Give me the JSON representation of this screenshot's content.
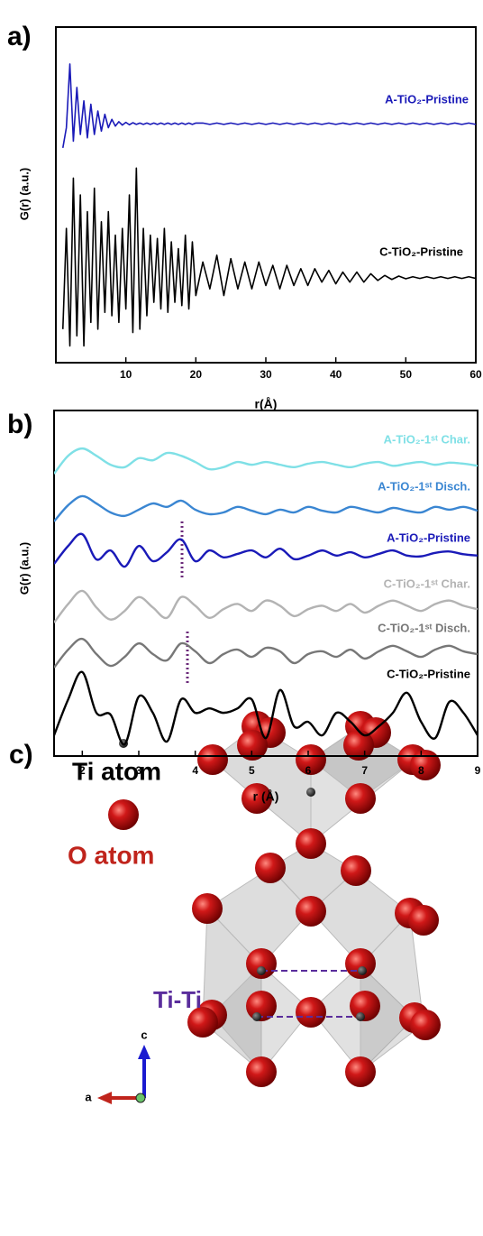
{
  "chart_data": [
    {
      "type": "line",
      "panel_label": "a)",
      "xlabel": "r(Å)",
      "ylabel": "G(r) (a.u.)",
      "xlim": [
        0,
        60
      ],
      "xticks": [
        10,
        20,
        30,
        40,
        50,
        60
      ],
      "ylim": [
        0,
        100
      ],
      "x": [
        1,
        1.5,
        2,
        2.5,
        3,
        3.5,
        4,
        4.5,
        5,
        5.5,
        6,
        6.5,
        7,
        7.5,
        8,
        8.5,
        9,
        9.5,
        10,
        10.5,
        11,
        11.5,
        12,
        12.5,
        13,
        13.5,
        14,
        14.5,
        15,
        15.5,
        16,
        16.5,
        17,
        17.5,
        18,
        18.5,
        19,
        19.5,
        20,
        21,
        22,
        23,
        24,
        25,
        26,
        27,
        28,
        29,
        30,
        31,
        32,
        33,
        34,
        35,
        36,
        37,
        38,
        39,
        40,
        41,
        42,
        43,
        44,
        45,
        46,
        47,
        48,
        49,
        50,
        51,
        52,
        53,
        54,
        55,
        56,
        57,
        58,
        59,
        60
      ],
      "series": [
        {
          "name": "A-TiO₂-Pristine",
          "color": "#1a1ab8",
          "values": [
            64,
            70,
            89,
            66,
            82,
            68,
            78,
            67,
            77,
            68,
            75,
            69,
            74,
            70,
            72.5,
            70.5,
            71.8,
            70.8,
            71.6,
            70.9,
            71.5,
            71,
            71.4,
            71,
            71.4,
            71,
            71.4,
            71,
            71.4,
            71,
            71.4,
            71,
            71.4,
            71,
            71.4,
            71,
            71.4,
            71,
            71.4,
            71.4,
            71,
            71.4,
            71,
            71.4,
            71,
            71.4,
            71,
            71.4,
            71,
            71.4,
            71,
            71.4,
            71,
            71.4,
            71,
            71.4,
            71,
            71.4,
            71,
            71.4,
            71,
            71.4,
            71,
            71.4,
            71,
            71.4,
            71,
            71.4,
            71,
            71.4,
            71,
            71.4,
            71,
            71.4,
            71,
            71.4,
            71,
            71.4,
            71
          ]
        },
        {
          "name": "C-TiO₂-Pristine",
          "color": "#000000",
          "values": [
            10,
            40,
            5,
            55,
            8,
            50,
            5,
            45,
            12,
            52,
            10,
            42,
            15,
            45,
            14,
            38,
            12,
            40,
            16,
            50,
            9,
            58,
            10,
            40,
            14,
            38,
            18,
            37,
            16,
            40,
            15,
            36,
            18,
            34,
            17,
            38,
            16,
            36,
            20,
            30,
            22,
            32,
            20,
            31,
            22,
            30,
            22,
            30,
            23,
            29,
            22,
            29,
            23,
            28,
            23,
            28,
            24,
            27.5,
            23.5,
            27,
            24,
            27,
            24,
            26.5,
            24.5,
            26,
            24.8,
            25.8,
            25,
            25.6,
            25.1,
            25.6,
            25.1,
            25.6,
            25.1,
            25.6,
            25.1,
            25.6,
            25.1
          ]
        }
      ]
    },
    {
      "type": "line",
      "panel_label": "b)",
      "xlabel": "r (Å)",
      "ylabel": "G(r) (a.u.)",
      "xlim": [
        1.5,
        9
      ],
      "xticks": [
        2,
        3,
        4,
        5,
        6,
        7,
        8,
        9
      ],
      "ylim": [
        0,
        100
      ],
      "x": [
        1.5,
        1.75,
        2,
        2.25,
        2.5,
        2.75,
        3,
        3.25,
        3.5,
        3.75,
        4,
        4.25,
        4.5,
        4.75,
        5,
        5.25,
        5.5,
        5.75,
        6,
        6.25,
        6.5,
        6.75,
        7,
        7.25,
        7.5,
        7.75,
        8,
        8.25,
        8.5,
        8.75,
        9
      ],
      "series": [
        {
          "name": "A-TiO₂-1ˢᵗ Char.",
          "color": "#7fe0e6",
          "values": [
            81.7,
            86.9,
            89,
            86.9,
            84.3,
            83.6,
            86.2,
            85.6,
            87.7,
            86.9,
            85.1,
            83,
            83.6,
            85.1,
            84.3,
            85.1,
            84.3,
            83.6,
            84.6,
            85.1,
            84.3,
            83.6,
            84.6,
            85.1,
            84,
            84.6,
            85.1,
            84.3,
            84.9,
            84.6,
            84
          ]
        },
        {
          "name": "A-TiO₂-1ˢᵗ Disch.",
          "color": "#3a86d2",
          "values": [
            67.9,
            72.6,
            75.2,
            73.1,
            70.5,
            69.5,
            71.3,
            73.1,
            72.1,
            73.9,
            71.3,
            70,
            70.5,
            72.1,
            71,
            70,
            71.3,
            70.5,
            72.1,
            71,
            70.5,
            72.1,
            71.3,
            70.5,
            71.8,
            71,
            70.5,
            72.1,
            71.3,
            72.1,
            71
          ]
        },
        {
          "name": "A-TiO₂-Pristine",
          "color": "#1a1ab8",
          "values": [
            55.6,
            60.8,
            64.2,
            56.9,
            59.5,
            54.8,
            60.8,
            56.4,
            59,
            62.7,
            56.4,
            59.5,
            57.5,
            58.5,
            59.5,
            57.5,
            60,
            57,
            58,
            59.5,
            58,
            59,
            57.5,
            58.5,
            59.5,
            58,
            57.8,
            58.8,
            59.2,
            58.4,
            58
          ]
        },
        {
          "name": "C-TiO₂-1ˢᵗ Char.",
          "color": "#b3b3b3",
          "values": [
            38.6,
            44,
            47.8,
            43,
            39.5,
            42,
            46,
            43,
            40,
            46,
            43.5,
            40,
            42.5,
            44,
            42,
            45,
            43.5,
            40.5,
            42.5,
            43.5,
            42,
            44,
            41.5,
            43.5,
            45,
            43.5,
            42,
            44,
            45,
            43.5,
            42.5
          ]
        },
        {
          "name": "C-TiO₂-1ˢᵗ Disch.",
          "color": "#777777",
          "values": [
            25.6,
            30.8,
            33.9,
            29.5,
            26.1,
            28.7,
            32.6,
            29.5,
            27.7,
            32.6,
            30.3,
            26.9,
            29.5,
            30.8,
            28.7,
            31.3,
            30.3,
            26.9,
            29.5,
            30.3,
            28.7,
            30.8,
            28.2,
            30.3,
            31.9,
            30.3,
            28.7,
            30.8,
            31.9,
            30.3,
            29.5
          ]
        },
        {
          "name": "C-TiO₂-Pristine",
          "color": "#000000",
          "values": [
            6,
            16.4,
            24.3,
            12.5,
            12,
            3.4,
            17.2,
            12.5,
            4.2,
            16.4,
            12.5,
            13.8,
            12.5,
            13.8,
            16.4,
            5.2,
            19.1,
            8.6,
            9.9,
            6,
            12.5,
            9.9,
            6,
            8.6,
            12.5,
            18.3,
            9.9,
            5.2,
            15.7,
            12.5,
            6
          ]
        }
      ]
    }
  ],
  "diagram": {
    "panel_label": "c)",
    "legend": [
      "Ti atom",
      "O atom"
    ],
    "annotation": "Ti-Ti",
    "axes": [
      "c",
      "a"
    ]
  }
}
